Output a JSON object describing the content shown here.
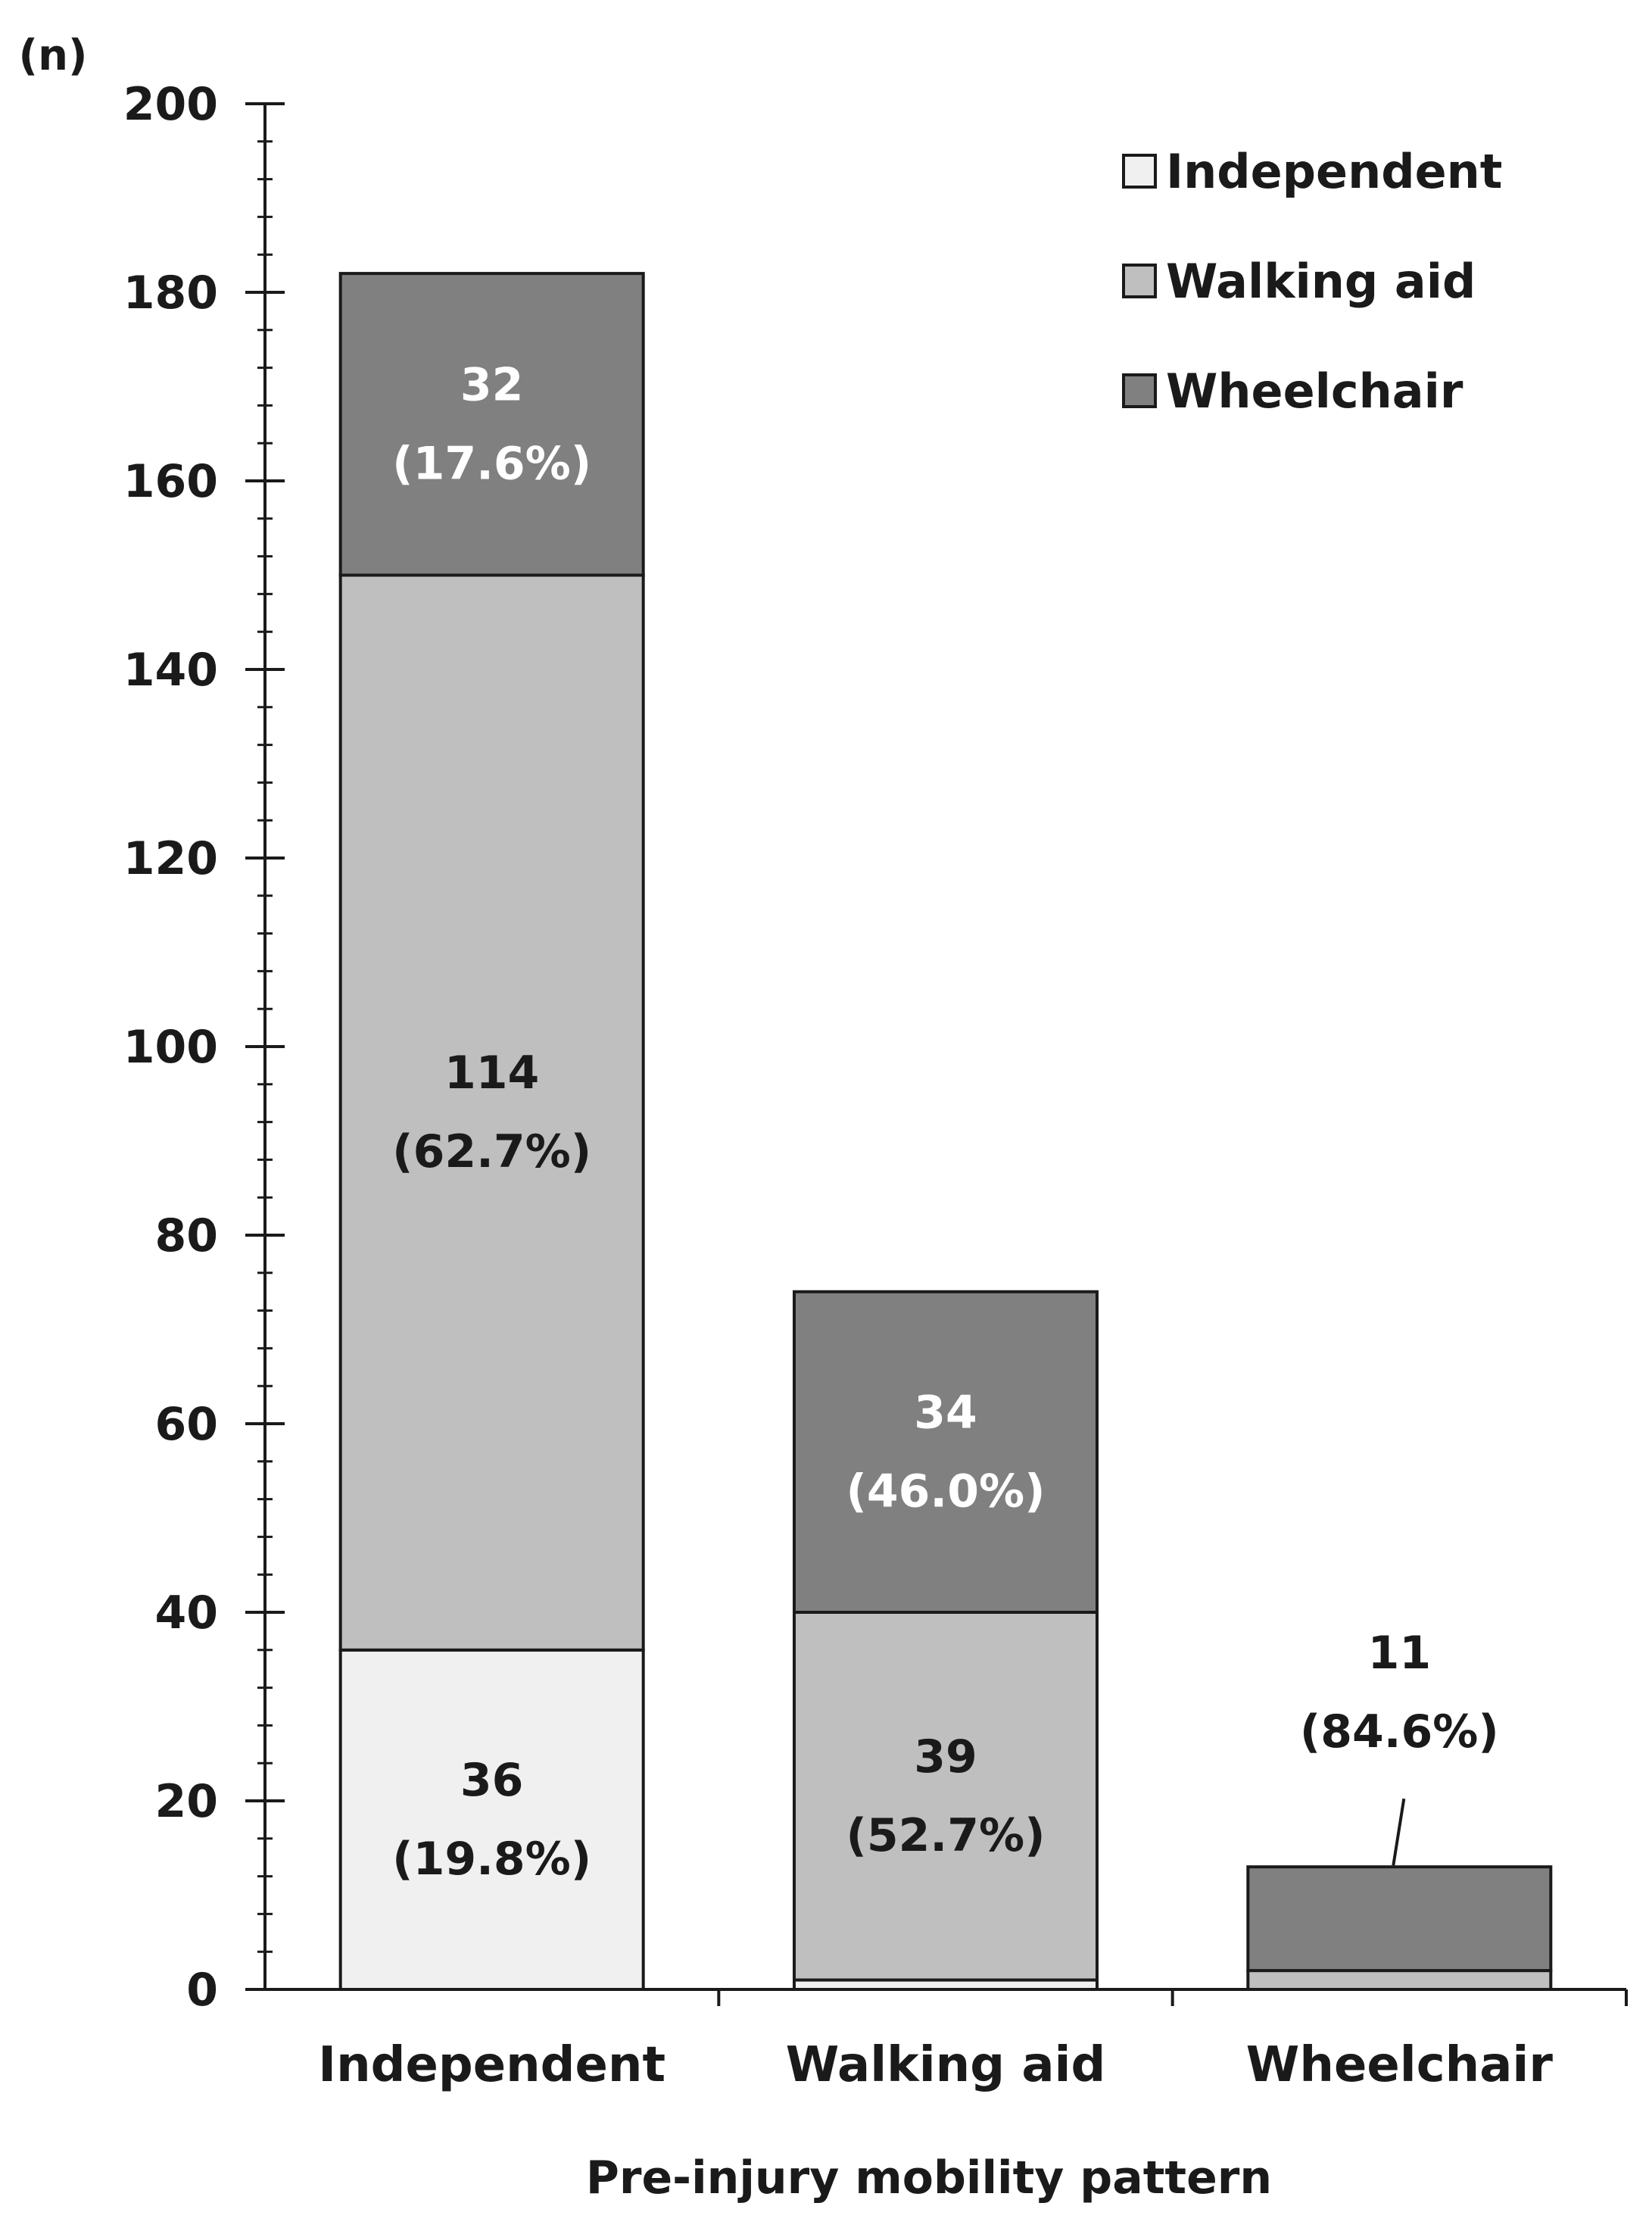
{
  "chart_data": {
    "type": "bar",
    "stacked": true,
    "y_unit_label": "(n)",
    "xlabel": "Pre-injury mobility pattern",
    "ylabel": "",
    "ylim": [
      0,
      200
    ],
    "y_major_ticks": [
      0,
      20,
      40,
      60,
      80,
      100,
      120,
      140,
      160,
      180,
      200
    ],
    "y_minor_step": 4,
    "categories": [
      "Independent",
      "Walking aid",
      "Wheelchair"
    ],
    "series": [
      {
        "name": "Independent",
        "values": [
          36,
          1,
          0
        ],
        "color": "#f0f0f0"
      },
      {
        "name": "Walking aid",
        "values": [
          114,
          39,
          2
        ],
        "color": "#bfbfbf"
      },
      {
        "name": "Wheelchair",
        "values": [
          32,
          34,
          11
        ],
        "color": "#808080"
      }
    ],
    "data_labels": [
      {
        "category": "Independent",
        "series": "Independent",
        "lines": [
          "36",
          "(19.8%)"
        ],
        "color": "#1a1a1a"
      },
      {
        "category": "Independent",
        "series": "Walking aid",
        "lines": [
          "114",
          "(62.7%)"
        ],
        "color": "#1a1a1a"
      },
      {
        "category": "Independent",
        "series": "Wheelchair",
        "lines": [
          "32",
          "(17.6%)"
        ],
        "color": "#ffffff"
      },
      {
        "category": "Walking aid",
        "series": "Walking aid",
        "lines": [
          "39",
          "(52.7%)"
        ],
        "color": "#1a1a1a"
      },
      {
        "category": "Walking aid",
        "series": "Wheelchair",
        "lines": [
          "34",
          "(46.0%)"
        ],
        "color": "#ffffff"
      },
      {
        "category": "Wheelchair",
        "series": "Wheelchair",
        "lines": [
          "11",
          "(84.6%)"
        ],
        "color": "#1a1a1a",
        "callout": true
      }
    ],
    "legend": {
      "position": "top-right",
      "entries": [
        "Independent",
        "Walking aid",
        "Wheelchair"
      ]
    },
    "grid": false
  }
}
